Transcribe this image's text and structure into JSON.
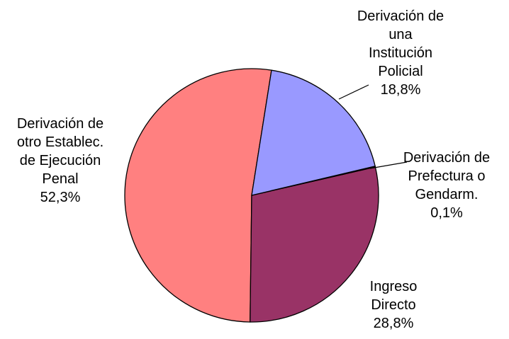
{
  "chart_data": {
    "type": "pie",
    "categories": [
      "Derivación de una Institución Policial",
      "Derivación de Prefectura o Gendarm.",
      "Ingreso Directo",
      "Derivación de otro Establec. de Ejecución Penal"
    ],
    "values": [
      18.8,
      0.1,
      28.8,
      52.3
    ],
    "value_labels": [
      "18,8%",
      "0,1%",
      "28,8%",
      "52,3%"
    ],
    "colors": [
      "#9999ff",
      "#ffffcc",
      "#993366",
      "#ff8080"
    ]
  }
}
